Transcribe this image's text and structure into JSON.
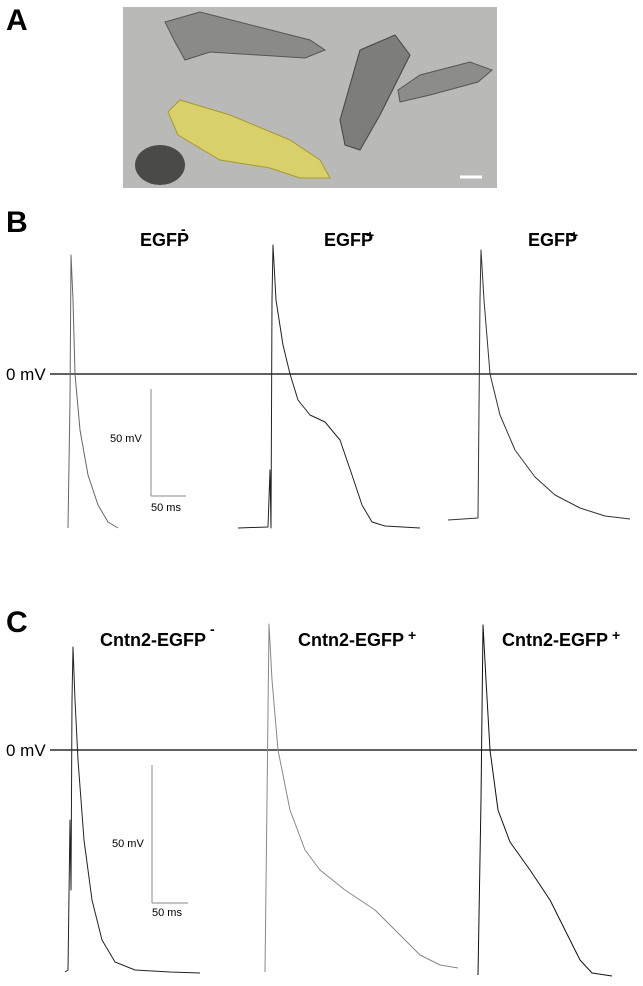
{
  "panels": [
    {
      "label": "A"
    },
    {
      "label": "B",
      "zero_label": "0 mV",
      "scale_y": "50 mV",
      "scale_x": "50 ms",
      "traces": [
        {
          "title": "EGFP",
          "sign": "-"
        },
        {
          "title": "EGFP",
          "sign": "+"
        },
        {
          "title": "EGFP",
          "sign": "+"
        }
      ]
    },
    {
      "label": "C",
      "zero_label": "0 mV",
      "scale_y": "50 mV",
      "scale_x": "50 ms",
      "traces": [
        {
          "title": "Cntn2-EGFP",
          "sign": "-"
        },
        {
          "title": "Cntn2-EGFP",
          "sign": "+"
        },
        {
          "title": "Cntn2-EGFP",
          "sign": "+"
        }
      ]
    }
  ]
}
